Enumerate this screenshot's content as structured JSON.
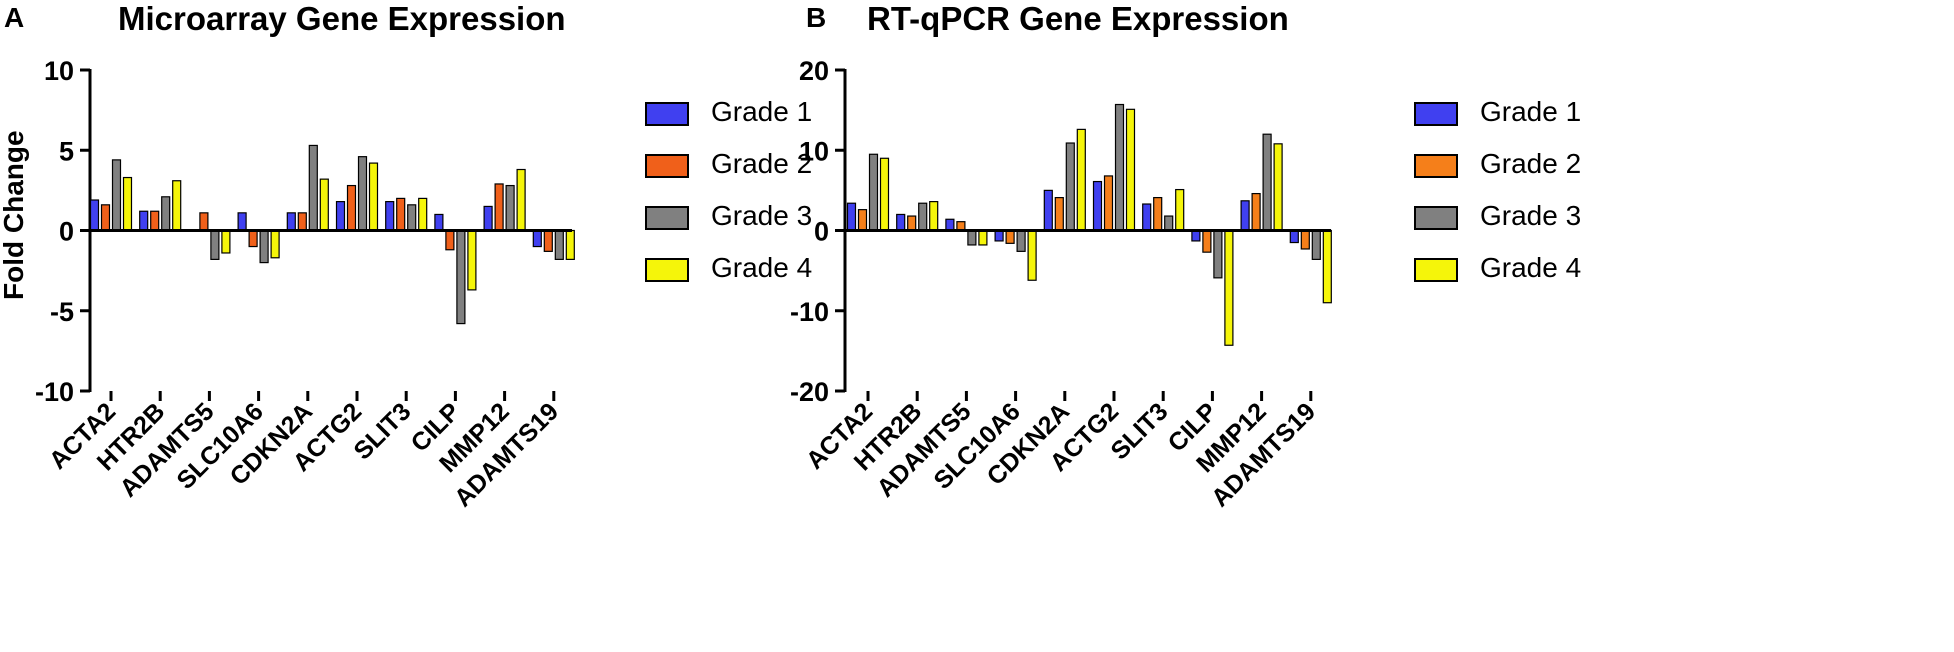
{
  "figure": {
    "panels": [
      {
        "letter": "A",
        "title": "Microarray Gene Expression"
      },
      {
        "letter": "B",
        "title": "RT-qPCR Gene Expression"
      }
    ]
  },
  "chart_data": [
    {
      "type": "bar",
      "title": "Microarray Gene Expression",
      "xlabel": "",
      "ylabel": "Fold Change",
      "ylim": [
        -10,
        10
      ],
      "yticks": [
        10,
        5,
        0,
        -5,
        -10
      ],
      "ytick_labels": [
        "10",
        "5",
        "0",
        "-5",
        "-10"
      ],
      "legend_position": "right",
      "categories": [
        "ACTA2",
        "HTR2B",
        "ADAMTS5",
        "SLC10A6",
        "CDKN2A",
        "ACTG2",
        "SLIT3",
        "CILP",
        "MMP12",
        "ADAMTS19"
      ],
      "series": [
        {
          "name": "Grade 1",
          "color": "#4040f0",
          "values": [
            1.9,
            1.2,
            0,
            1.1,
            1.1,
            1.8,
            1.8,
            1.0,
            1.5,
            -1.0
          ]
        },
        {
          "name": "Grade 2",
          "color": "#f0601a",
          "values": [
            1.6,
            1.2,
            1.1,
            -1.0,
            1.1,
            2.8,
            2.0,
            -1.2,
            2.9,
            -1.3
          ]
        },
        {
          "name": "Grade 3",
          "color": "#808080",
          "values": [
            4.4,
            2.1,
            -1.8,
            -2.0,
            5.3,
            4.6,
            1.6,
            -5.8,
            2.8,
            -1.8
          ]
        },
        {
          "name": "Grade 4",
          "color": "#f5f50a",
          "values": [
            3.3,
            3.1,
            -1.4,
            -1.7,
            3.2,
            4.2,
            2.0,
            -3.7,
            3.8,
            -1.8
          ]
        }
      ]
    },
    {
      "type": "bar",
      "title": "RT-qPCR Gene Expression",
      "xlabel": "",
      "ylabel": "",
      "ylim": [
        -20,
        20
      ],
      "yticks": [
        20,
        10,
        0,
        -10,
        -20
      ],
      "ytick_labels": [
        "20",
        "10",
        "0",
        "-10",
        "-20"
      ],
      "legend_position": "right",
      "categories": [
        "ACTA2",
        "HTR2B",
        "ADAMTS5",
        "SLC10A6",
        "CDKN2A",
        "ACTG2",
        "SLIT3",
        "CILP",
        "MMP12",
        "ADAMTS19"
      ],
      "series": [
        {
          "name": "Grade 1",
          "color": "#4040f0",
          "values": [
            3.4,
            2.0,
            1.4,
            -1.3,
            5.0,
            6.1,
            3.3,
            -1.3,
            3.7,
            -1.5
          ]
        },
        {
          "name": "Grade 2",
          "color": "#f57f1a",
          "values": [
            2.6,
            1.8,
            1.1,
            -1.6,
            4.1,
            6.8,
            4.1,
            -2.7,
            4.6,
            -2.3
          ]
        },
        {
          "name": "Grade 3",
          "color": "#808080",
          "values": [
            9.5,
            3.4,
            -1.8,
            -2.6,
            10.9,
            15.7,
            1.8,
            -5.9,
            12.0,
            -3.6
          ]
        },
        {
          "name": "Grade 4",
          "color": "#f5f50a",
          "values": [
            9.0,
            3.6,
            -1.8,
            -6.2,
            12.6,
            15.1,
            5.1,
            -14.3,
            10.8,
            -9.0
          ]
        }
      ]
    }
  ]
}
